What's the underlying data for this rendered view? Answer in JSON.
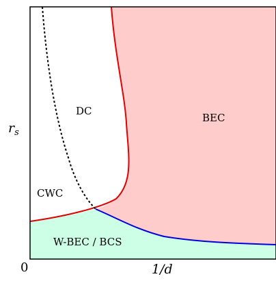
{
  "axes": {
    "x_label": "1/d",
    "y_label_main": "r",
    "y_label_sub": "s",
    "origin": "0"
  },
  "regions": {
    "dc": "DC",
    "bec": "BEC",
    "cwc": "CWC",
    "wbec_bcs": "W-BEC / BCS"
  },
  "colors": {
    "bec_fill": "#ffcccc",
    "wbec_fill": "#ccffe6",
    "dc_bec_boundary": "#e00000",
    "wbec_boundary": "#0000dd",
    "cwc_boundary": "#000000"
  }
}
